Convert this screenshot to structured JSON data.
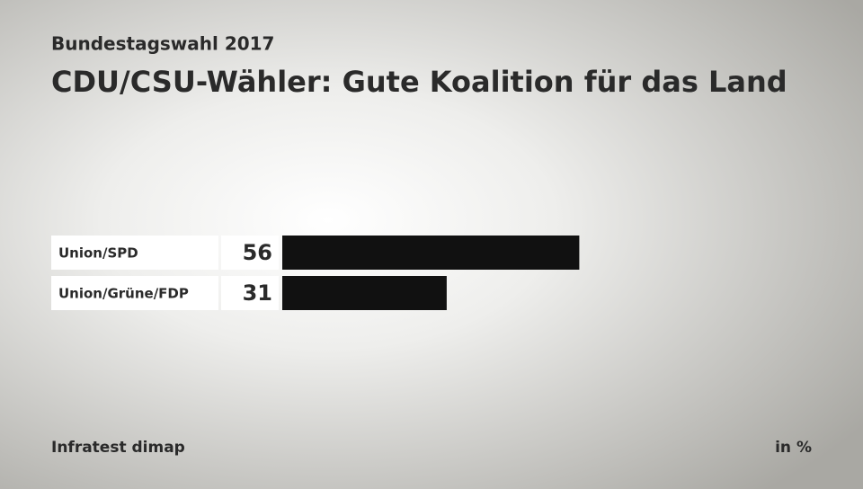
{
  "chart_data": {
    "type": "bar",
    "orientation": "horizontal",
    "subtitle": "Bundestagswahl 2017",
    "title": "CDU/CSU-Wähler: Gute Koalition für das Land",
    "categories": [
      "Union/SPD",
      "Union/Grüne/FDP"
    ],
    "values": [
      56,
      31
    ],
    "color": "#111111",
    "source": "Infratest dimap",
    "unit": "in %"
  }
}
